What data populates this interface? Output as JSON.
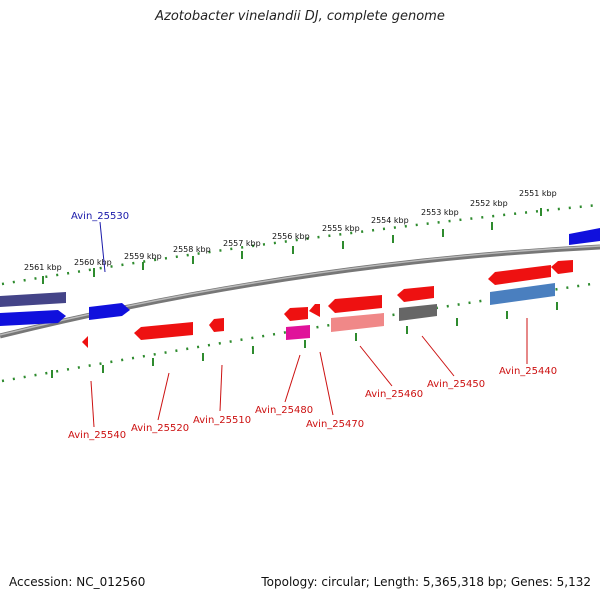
{
  "title": "Azotobacter vinelandii DJ, complete genome",
  "footer": {
    "accession": "Accession: NC_012560",
    "stats": "Topology: circular; Length: 5,365,318 bp; Genes: 5,132"
  },
  "scale_ticks": [
    "2561 kbp",
    "2560 kbp",
    "2559 kbp",
    "2558 kbp",
    "2557 kbp",
    "2556 kbp",
    "2555 kbp",
    "2554 kbp",
    "2553 kbp",
    "2552 kbp",
    "2551 kbp"
  ],
  "gene_labels": {
    "avin_25530": "Avin_25530",
    "avin_25540": "Avin_25540",
    "avin_25520": "Avin_25520",
    "avin_25510": "Avin_25510",
    "avin_25480": "Avin_25480",
    "avin_25470": "Avin_25470",
    "avin_25460": "Avin_25460",
    "avin_25450": "Avin_25450",
    "avin_25440": "Avin_25440"
  },
  "colors": {
    "forward_strand": "#1010dd",
    "reverse_strand": "#ee1111",
    "backbone": "#888888",
    "scale": "#2e8b2e",
    "forward_label": "#1a1aaa",
    "reverse_label": "#cc1111"
  }
}
